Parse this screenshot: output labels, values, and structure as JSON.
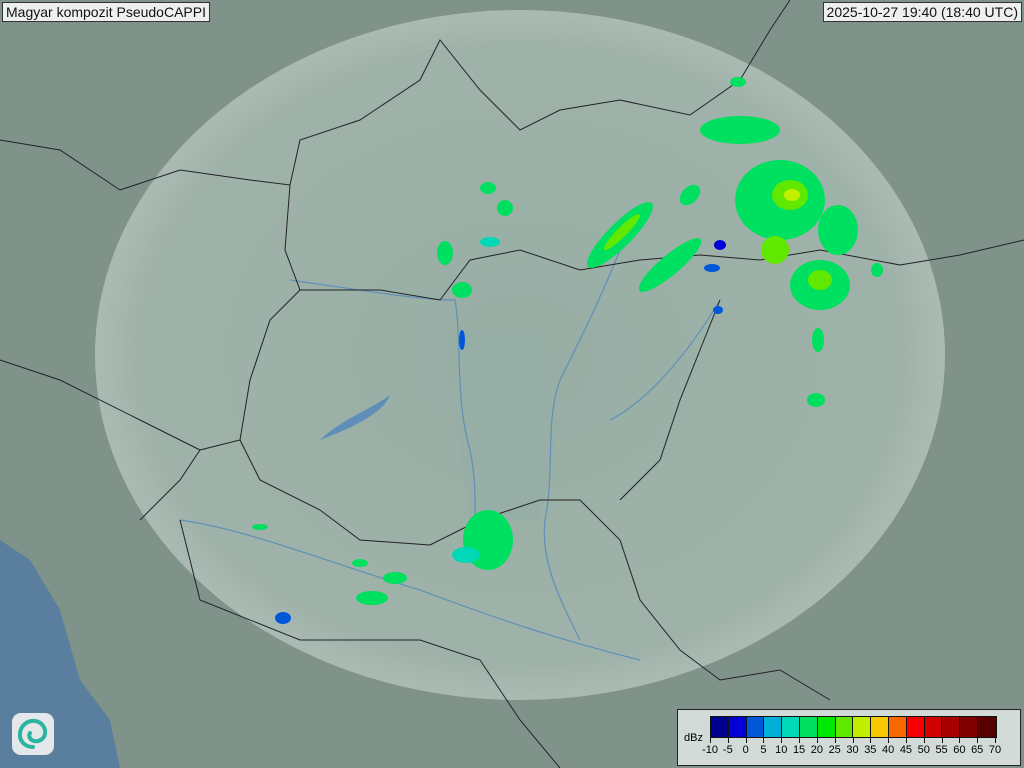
{
  "header": {
    "title": "Magyar kompozit  PseudoCAPPI",
    "timestamp": "2025-10-27 19:40 (18:40 UTC)"
  },
  "logo": {
    "icon": "swirl-logo-icon"
  },
  "legend": {
    "unit": "dBz",
    "ticks": [
      "-10",
      "-5",
      "0",
      "5",
      "10",
      "15",
      "20",
      "25",
      "30",
      "35",
      "40",
      "45",
      "50",
      "55",
      "60",
      "65",
      "70"
    ],
    "colors": [
      "#000090",
      "#0000d8",
      "#0058d8",
      "#00b0d8",
      "#00d8b8",
      "#00e060",
      "#00e800",
      "#60e800",
      "#c0f000",
      "#f8c800",
      "#f86800",
      "#f80000",
      "#d00000",
      "#a80000",
      "#800000",
      "#580000"
    ]
  },
  "colors": {
    "terrain": "#7d9088",
    "coverage": "#a9bcb4",
    "border": "#222222",
    "river": "#5f8fb8",
    "sea": "#5a7e9e"
  }
}
